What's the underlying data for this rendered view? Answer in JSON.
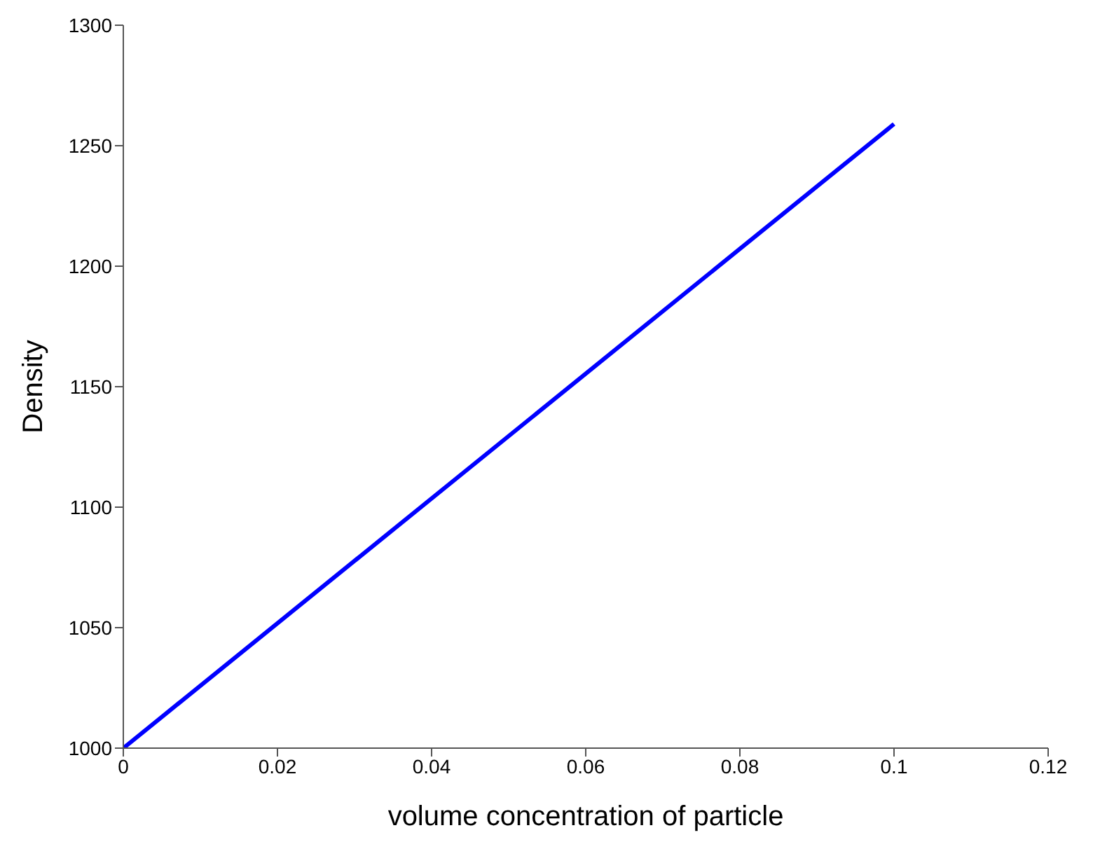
{
  "chart_data": {
    "type": "line",
    "xlabel": "volume concentration of particle",
    "ylabel": "Density",
    "x": [
      0,
      0.1
    ],
    "series": [
      {
        "color": "#0000ff",
        "values": [
          1000,
          1259
        ]
      }
    ],
    "xlim": [
      0,
      0.12
    ],
    "xticks": [
      0,
      0.02,
      0.04,
      0.06,
      0.08,
      0.1,
      0.12
    ],
    "ylim": [
      1000,
      1300
    ],
    "yticks": [
      1000,
      1050,
      1100,
      1150,
      1200,
      1250,
      1300
    ],
    "grid": false,
    "legend": false,
    "marker": "none",
    "line_style": "solid"
  }
}
